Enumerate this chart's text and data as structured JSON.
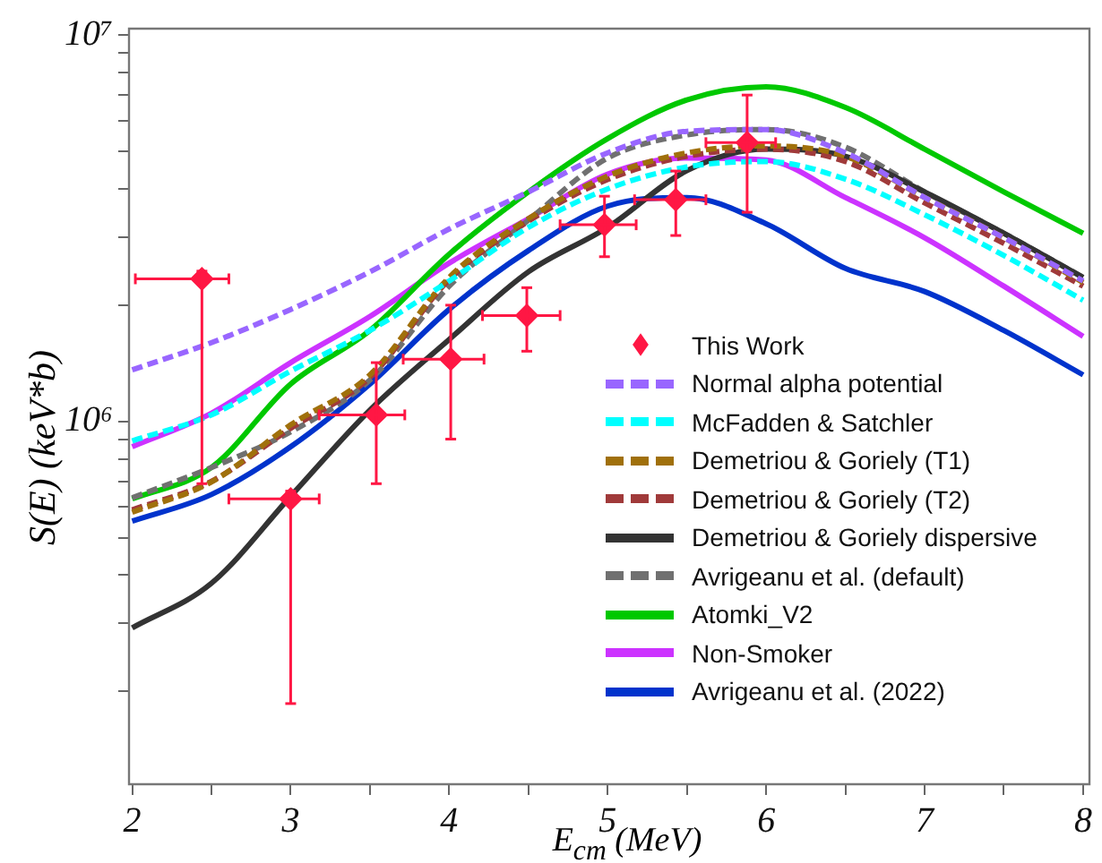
{
  "chart_data": {
    "type": "line",
    "xlabel": "E$_{cm}$ (MeV)",
    "ylabel": "S(E) (keV*b)",
    "x": [
      2,
      2.5,
      3,
      3.5,
      4,
      4.5,
      5,
      5.5,
      6,
      6.5,
      7,
      7.5,
      8
    ],
    "xlim": [
      1.98,
      8.04
    ],
    "ylim": [
      115000,
      10400000
    ],
    "log": "y",
    "legend": "right",
    "grid": false,
    "xticks": [
      2,
      {
        "value": 2.5,
        "label": null
      },
      3,
      {
        "value": 3.5,
        "label": null
      },
      4,
      {
        "value": 4.5,
        "label": null
      },
      5,
      {
        "value": 5.5,
        "label": null
      },
      6,
      {
        "value": 6.5,
        "label": null
      },
      7,
      {
        "value": 7.5,
        "label": null
      },
      8
    ],
    "yticks": [
      {
        "value": 200000,
        "label": null
      },
      {
        "value": 300000,
        "label": null
      },
      {
        "value": 400000,
        "label": null
      },
      {
        "value": 500000,
        "label": null
      },
      {
        "value": 600000,
        "label": null
      },
      {
        "value": 700000,
        "label": null
      },
      {
        "value": 800000,
        "label": null
      },
      {
        "value": 900000,
        "label": null
      },
      {
        "value": 1000000,
        "label": "10⁶"
      },
      {
        "value": 2000000,
        "label": null
      },
      {
        "value": 3000000,
        "label": null
      },
      {
        "value": 4000000,
        "label": null
      },
      {
        "value": 5000000,
        "label": null
      },
      {
        "value": 6000000,
        "label": null
      },
      {
        "value": 7000000,
        "label": null
      },
      {
        "value": 8000000,
        "label": null
      },
      {
        "value": 9000000,
        "label": null
      },
      {
        "value": 10000000,
        "label": "10⁷"
      }
    ],
    "series": [
      {
        "name": "This Work",
        "type": "scatter",
        "marker": "diamond",
        "color": "#ff1744",
        "x": [
          2.44,
          3.0,
          3.54,
          4.01,
          4.49,
          4.98,
          5.43,
          5.88
        ],
        "values": [
          2340000,
          630000,
          1040000,
          1450000,
          1880000,
          3230000,
          3750000,
          5270000
        ],
        "errors": [
          [
            690000,
            2450000
          ],
          [
            186000,
            660000
          ],
          [
            690000,
            1420000
          ],
          [
            900000,
            2000000
          ],
          [
            1520000,
            2220000
          ],
          [
            2670000,
            3830000
          ],
          [
            3030000,
            4450000
          ],
          [
            3480000,
            7000000
          ]
        ],
        "xerrors": [
          [
            2.02,
            2.61
          ],
          [
            2.61,
            3.18
          ],
          [
            3.18,
            3.72
          ],
          [
            3.71,
            4.22
          ],
          [
            4.21,
            4.7
          ],
          [
            4.7,
            5.18
          ],
          [
            5.17,
            5.62
          ],
          [
            5.62,
            6.06
          ]
        ]
      },
      {
        "name": "Normal alpha potential",
        "line_style": "dashed",
        "color": "#9966ff",
        "values": [
          1360000,
          1600000,
          1950000,
          2440000,
          3150000,
          3930000,
          4960000,
          5640000,
          5700000,
          4960000,
          3800000,
          2990000,
          2310000
        ]
      },
      {
        "name": "McFadden & Satchler",
        "line_style": "dashed",
        "color": "#00ffff",
        "values": [
          890000,
          1040000,
          1350000,
          1720000,
          2310000,
          3180000,
          4000000,
          4560000,
          4710000,
          4240000,
          3430000,
          2690000,
          2060000
        ]
      },
      {
        "name": "Demetriou & Goriely (T1)",
        "line_style": "dashed",
        "color": "#a0700b",
        "values": [
          582000,
          697000,
          980000,
          1320000,
          2360000,
          3350000,
          4320000,
          4960000,
          5170000,
          4860000,
          3800000,
          2990000,
          2290000
        ]
      },
      {
        "name": "Demetriou & Goriely (T2)",
        "line_style": "dashed",
        "color": "#a03a3a",
        "values": [
          590000,
          700000,
          960000,
          1300000,
          2330000,
          3300000,
          4230000,
          4860000,
          5070000,
          4710000,
          3680000,
          2890000,
          2240000
        ]
      },
      {
        "name": "Demetriou & Goriely dispersive",
        "line_style": "solid",
        "color": "#333333",
        "values": [
          292000,
          381000,
          640000,
          1070000,
          1630000,
          2440000,
          3180000,
          4460000,
          5070000,
          4860000,
          3930000,
          3070000,
          2360000
        ]
      },
      {
        "name": "Avrigeanu et al. (default)",
        "line_style": "dashed",
        "color": "#707070",
        "values": [
          634000,
          760000,
          940000,
          1280000,
          2240000,
          3320000,
          4810000,
          5520000,
          5700000,
          5130000,
          3930000,
          3070000,
          2360000
        ]
      },
      {
        "name": "Atomki_V2",
        "line_style": "solid",
        "color": "#00c800",
        "values": [
          630000,
          760000,
          1250000,
          1720000,
          2710000,
          3930000,
          5400000,
          6800000,
          7350000,
          6500000,
          5070000,
          3930000,
          3070000
        ]
      },
      {
        "name": "Non-Smoker",
        "line_style": "solid",
        "color": "#cc33ff",
        "values": [
          860000,
          1050000,
          1420000,
          1870000,
          2570000,
          3350000,
          4370000,
          4810000,
          4750000,
          3800000,
          2990000,
          2240000,
          1660000
        ]
      },
      {
        "name": "Avrigeanu et al. (2022)",
        "line_style": "solid",
        "color": "#0033cc",
        "values": [
          552000,
          647000,
          860000,
          1250000,
          1950000,
          2770000,
          3610000,
          3800000,
          3250000,
          2490000,
          2170000,
          1720000,
          1320000
        ]
      }
    ]
  }
}
